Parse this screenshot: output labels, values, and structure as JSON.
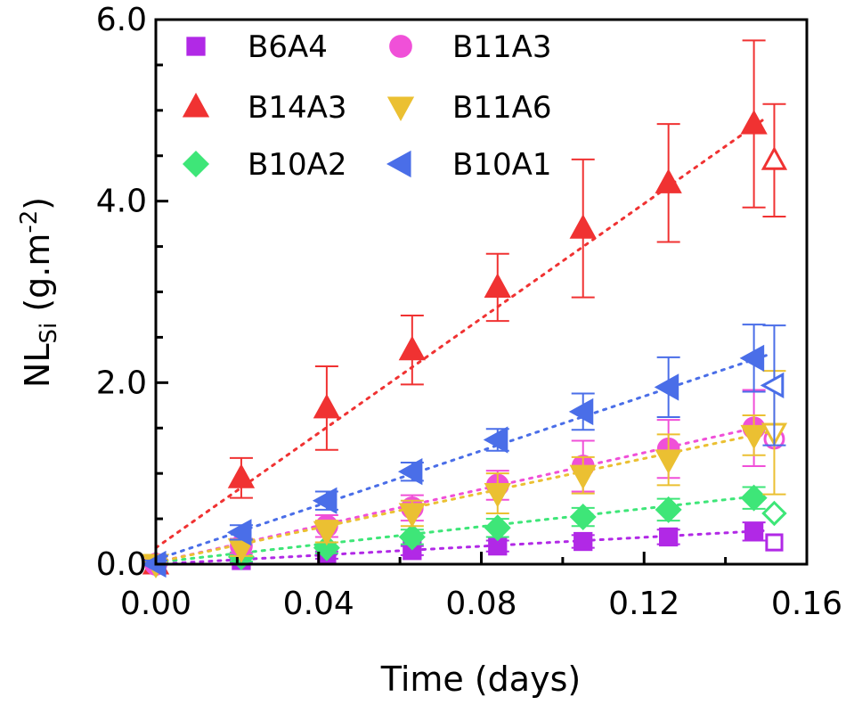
{
  "chart_data": {
    "type": "scatter",
    "title": "",
    "xlabel": "Time (days)",
    "ylabel_main": "NL",
    "ylabel_sub": "Si",
    "ylabel_unit_open": " (g.m",
    "ylabel_unit_sup": "-2",
    "ylabel_unit_close": ")",
    "xlim": [
      0.0,
      0.16
    ],
    "ylim": [
      0.0,
      6.0
    ],
    "x_ticks": [
      0.0,
      0.04,
      0.08,
      0.12,
      0.16
    ],
    "x_tick_labels": [
      "0.00",
      "0.04",
      "0.08",
      "0.12",
      "0.16"
    ],
    "y_ticks": [
      0.0,
      2.0,
      4.0,
      6.0
    ],
    "y_tick_labels": [
      "0.0",
      "2.0",
      "4.0",
      "6.0"
    ],
    "grid": false,
    "legend_position": "top-left",
    "series": [
      {
        "name": "B6A4",
        "marker": "square",
        "color": "#b129e6",
        "x": [
          0.0,
          0.021,
          0.042,
          0.063,
          0.084,
          0.105,
          0.126,
          0.147
        ],
        "y": [
          0.0,
          0.04,
          0.1,
          0.15,
          0.2,
          0.25,
          0.3,
          0.36
        ],
        "err": [
          0.03,
          0.03,
          0.04,
          0.05,
          0.06,
          0.07,
          0.08,
          0.1
        ],
        "trend": [
          [
            0.0,
            0.0
          ],
          [
            0.15,
            0.37
          ]
        ],
        "open_marker": [
          0.152,
          0.24
        ]
      },
      {
        "name": "B14A3",
        "marker": "triangle-up",
        "color": "#f03232",
        "x": [
          0.0,
          0.021,
          0.042,
          0.063,
          0.084,
          0.105,
          0.126,
          0.147
        ],
        "y": [
          0.0,
          0.95,
          1.72,
          2.36,
          3.05,
          3.7,
          4.2,
          4.85
        ],
        "err": [
          0.05,
          0.22,
          0.46,
          0.38,
          0.37,
          0.76,
          0.65,
          0.92
        ],
        "trend": [
          [
            0.0,
            0.18
          ],
          [
            0.15,
            4.92
          ]
        ],
        "open_marker": [
          0.152,
          4.45
        ],
        "open_err": 0.62
      },
      {
        "name": "B10A2",
        "marker": "diamond",
        "color": "#3ee678",
        "x": [
          0.0,
          0.021,
          0.042,
          0.063,
          0.084,
          0.105,
          0.126,
          0.147
        ],
        "y": [
          0.0,
          0.08,
          0.18,
          0.3,
          0.4,
          0.52,
          0.6,
          0.73
        ],
        "err": [
          0.03,
          0.05,
          0.06,
          0.08,
          0.1,
          0.1,
          0.12,
          0.12
        ],
        "trend": [
          [
            0.0,
            0.02
          ],
          [
            0.15,
            0.76
          ]
        ],
        "open_marker": [
          0.152,
          0.56
        ]
      },
      {
        "name": "B11A3",
        "marker": "circle",
        "color": "#f050d8",
        "x": [
          0.0,
          0.021,
          0.042,
          0.063,
          0.084,
          0.105,
          0.126,
          0.147
        ],
        "y": [
          0.0,
          0.2,
          0.42,
          0.62,
          0.87,
          1.08,
          1.27,
          1.5
        ],
        "err": [
          0.03,
          0.08,
          0.12,
          0.14,
          0.16,
          0.28,
          0.32,
          0.42
        ],
        "trend": [
          [
            0.0,
            0.02
          ],
          [
            0.15,
            1.53
          ]
        ],
        "open_marker": [
          0.152,
          1.38
        ]
      },
      {
        "name": "B11A6",
        "marker": "triangle-down",
        "color": "#ebc032",
        "x": [
          0.0,
          0.021,
          0.042,
          0.063,
          0.084,
          0.105,
          0.126,
          0.147
        ],
        "y": [
          0.0,
          0.17,
          0.36,
          0.56,
          0.78,
          0.98,
          1.15,
          1.42
        ],
        "err": [
          0.03,
          0.08,
          0.12,
          0.14,
          0.22,
          0.2,
          0.28,
          0.22
        ],
        "trend": [
          [
            0.0,
            0.02
          ],
          [
            0.15,
            1.45
          ]
        ],
        "open_marker": [
          0.152,
          1.45
        ],
        "open_err": 0.68
      },
      {
        "name": "B10A1",
        "marker": "triangle-left",
        "color": "#4a6ee8",
        "x": [
          0.0,
          0.021,
          0.042,
          0.063,
          0.084,
          0.105,
          0.126,
          0.147
        ],
        "y": [
          0.0,
          0.35,
          0.7,
          1.02,
          1.37,
          1.68,
          1.95,
          2.27
        ],
        "err": [
          0.04,
          0.08,
          0.1,
          0.1,
          0.12,
          0.2,
          0.33,
          0.37
        ],
        "trend": [
          [
            0.0,
            0.05
          ],
          [
            0.15,
            2.3
          ]
        ],
        "open_marker": [
          0.152,
          1.97
        ],
        "open_err": 0.66
      }
    ]
  }
}
